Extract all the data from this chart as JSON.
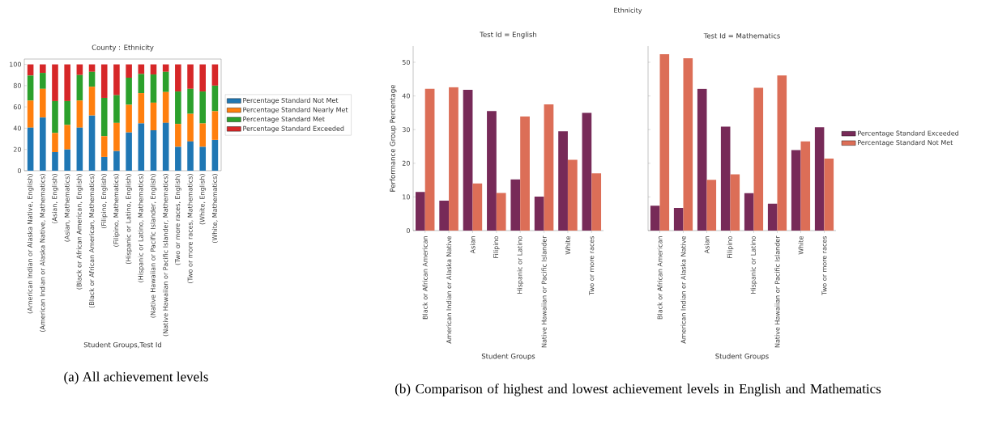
{
  "chart_data": [
    {
      "type": "bar",
      "title": "County : Ethnicity",
      "xlabel": "Student Groups,Test Id",
      "stacked": true,
      "legend": "right",
      "categories": [
        "(American Indian or Alaska Native, English)",
        "(American Indian or Alaska Native, Mathematics)",
        "(Asian, English)",
        "(Asian, Mathematics)",
        "(Black or African American, English)",
        "(Black or African American, Mathematics)",
        "(Filipino, English)",
        "(Filipino, Mathematics)",
        "(Hispanic or Latino, English)",
        "(Hispanic or Latino, Mathematics)",
        "(Native Hawaiian or Pacific Islander, English)",
        "(Native Hawaiian or Pacific Islander, Mathematics)",
        "(Two or more races, English)",
        "(Two or more races, Mathematics)",
        "(White, English)",
        "(White, Mathematics)"
      ],
      "series": [
        {
          "name": "Percentage Standard Not Met",
          "color": "#1f77b4",
          "values": [
            40.5,
            50,
            17.5,
            20,
            40.5,
            52,
            13,
            18.5,
            36,
            44.5,
            38,
            45,
            22.5,
            27.5,
            22.5,
            29
          ]
        },
        {
          "name": "Percentage Standard Nearly Met",
          "color": "#ff7f0e",
          "values": [
            25.5,
            27,
            18,
            23,
            25.5,
            27,
            19.5,
            26.5,
            26,
            28.5,
            26,
            29,
            21.5,
            26,
            22,
            27
          ]
        },
        {
          "name": "Percentage Standard Met",
          "color": "#2ca02c",
          "values": [
            23.5,
            15,
            30,
            22.5,
            24,
            14,
            36,
            26,
            25.5,
            18,
            26.5,
            19,
            30.5,
            23.5,
            30,
            24
          ]
        },
        {
          "name": "Percentage Standard Exceeded",
          "color": "#d62728",
          "values": [
            10.5,
            8,
            34.5,
            34.5,
            10,
            7,
            31.5,
            29,
            12.5,
            9,
            9.5,
            7,
            25.5,
            23,
            25.5,
            20
          ]
        }
      ],
      "ylim": [
        0,
        105
      ],
      "yticks": [
        0,
        20,
        40,
        60,
        80,
        100
      ],
      "annotations": [
        "(a) All achievement levels"
      ]
    },
    {
      "type": "bar",
      "title": "Test Id = English",
      "xlabel": "Student Groups",
      "ylabel": "Performance Group Percentage",
      "legend": false,
      "categories": [
        "Black or African American",
        "American Indian or Alaska Native",
        "Asian",
        "Filipino",
        "Hispanic or Latino",
        "Native Hawaiian or Pacific Islander",
        "White",
        "Two or more races"
      ],
      "series": [
        {
          "color": "#772a58",
          "values": [
            11.5,
            8.9,
            41.8,
            35.5,
            15.2,
            10.1,
            29.5,
            35.0
          ]
        },
        {
          "color": "#dc6e57",
          "values": [
            42.1,
            42.6,
            14.0,
            11.2,
            33.9,
            37.5,
            21.0,
            17.0
          ]
        }
      ],
      "ylim": [
        0,
        54.8
      ],
      "yticks": [
        0,
        10,
        20,
        30,
        40,
        50
      ],
      "annotations": [
        "Ethnicity",
        "(b) Comparison of highest and lowest achievement levels in English and Mathematics"
      ]
    },
    {
      "type": "bar",
      "title": "Test Id = Mathematics",
      "xlabel": "Student Groups",
      "legend": "right",
      "tick_labels": "x",
      "categories": [
        "Black or African American",
        "American Indian or Alaska Native",
        "Asian",
        "Filipino",
        "Hispanic or Latino",
        "Native Hawaiian or Pacific Islander",
        "White",
        "Two or more races"
      ],
      "series": [
        {
          "name": "Percentage Standard Exceeded",
          "color": "#772a58",
          "values": [
            7.4,
            6.7,
            42.1,
            30.9,
            11.1,
            8.0,
            23.9,
            30.7
          ]
        },
        {
          "name": "Percentage Standard Not Met",
          "color": "#dc6e57",
          "values": [
            52.4,
            51.2,
            15.1,
            16.7,
            42.4,
            46.1,
            26.5,
            21.4
          ]
        }
      ],
      "ylim": [
        0,
        54.8
      ],
      "yticks": [
        0,
        10,
        20,
        30,
        40,
        50
      ]
    }
  ]
}
